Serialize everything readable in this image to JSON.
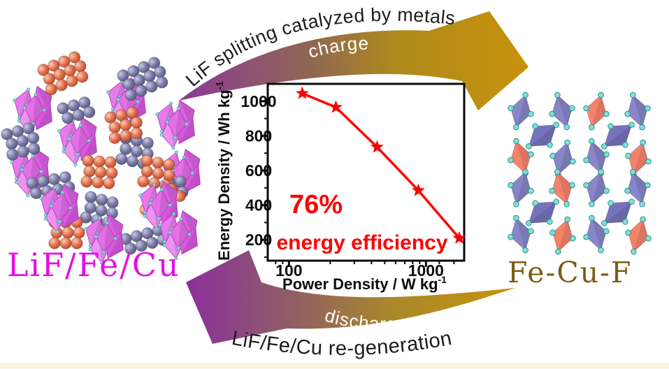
{
  "labels": {
    "left_structure": "LiF/Fe/Cu",
    "right_structure": "Fe-Cu-F"
  },
  "arrows": {
    "top": {
      "outer_text": "LiF splitting catalyzed by metals",
      "inner_text": "charge"
    },
    "bottom": {
      "outer_text": "LiF/Fe/Cu re-generation",
      "inner_text": "discharge"
    }
  },
  "colors": {
    "arrow_purple": "#8B3A97",
    "arrow_gold": "#C8920A",
    "left_label": "#E50FE5",
    "right_label": "#7D5B13",
    "chart_red": "#FF0000",
    "polyhedra_violet": "#E77BEB",
    "sphere_salmon": "#E2714E",
    "sphere_purple": "#7A7AA8",
    "rhombus_purple": "#8886C8",
    "rhombus_salmon": "#F5836C",
    "vertex_cyan": "#7FE0DB"
  },
  "chart_data": {
    "type": "line",
    "xlabel": "Power Density / W kg",
    "xlabel_superscript": "-1",
    "ylabel": "Energy Density / Wh kg",
    "ylabel_superscript": "-1",
    "xscale": "log",
    "xlim": [
      70,
      1900
    ],
    "ylim": [
      80,
      1100
    ],
    "x_tick_labels": [
      100,
      1000
    ],
    "y_tick_labels": [
      200,
      400,
      600,
      800,
      1000
    ],
    "series": [
      {
        "x": [
          125,
          220,
          440,
          880,
          1750
        ],
        "y": [
          1045,
          965,
          735,
          485,
          210
        ]
      }
    ],
    "marker": "star",
    "line_color": "#FF0000",
    "annotations": [
      "76%",
      "energy efficiency"
    ],
    "annotation_color": "#FF0000",
    "grid": false,
    "legend": false
  }
}
